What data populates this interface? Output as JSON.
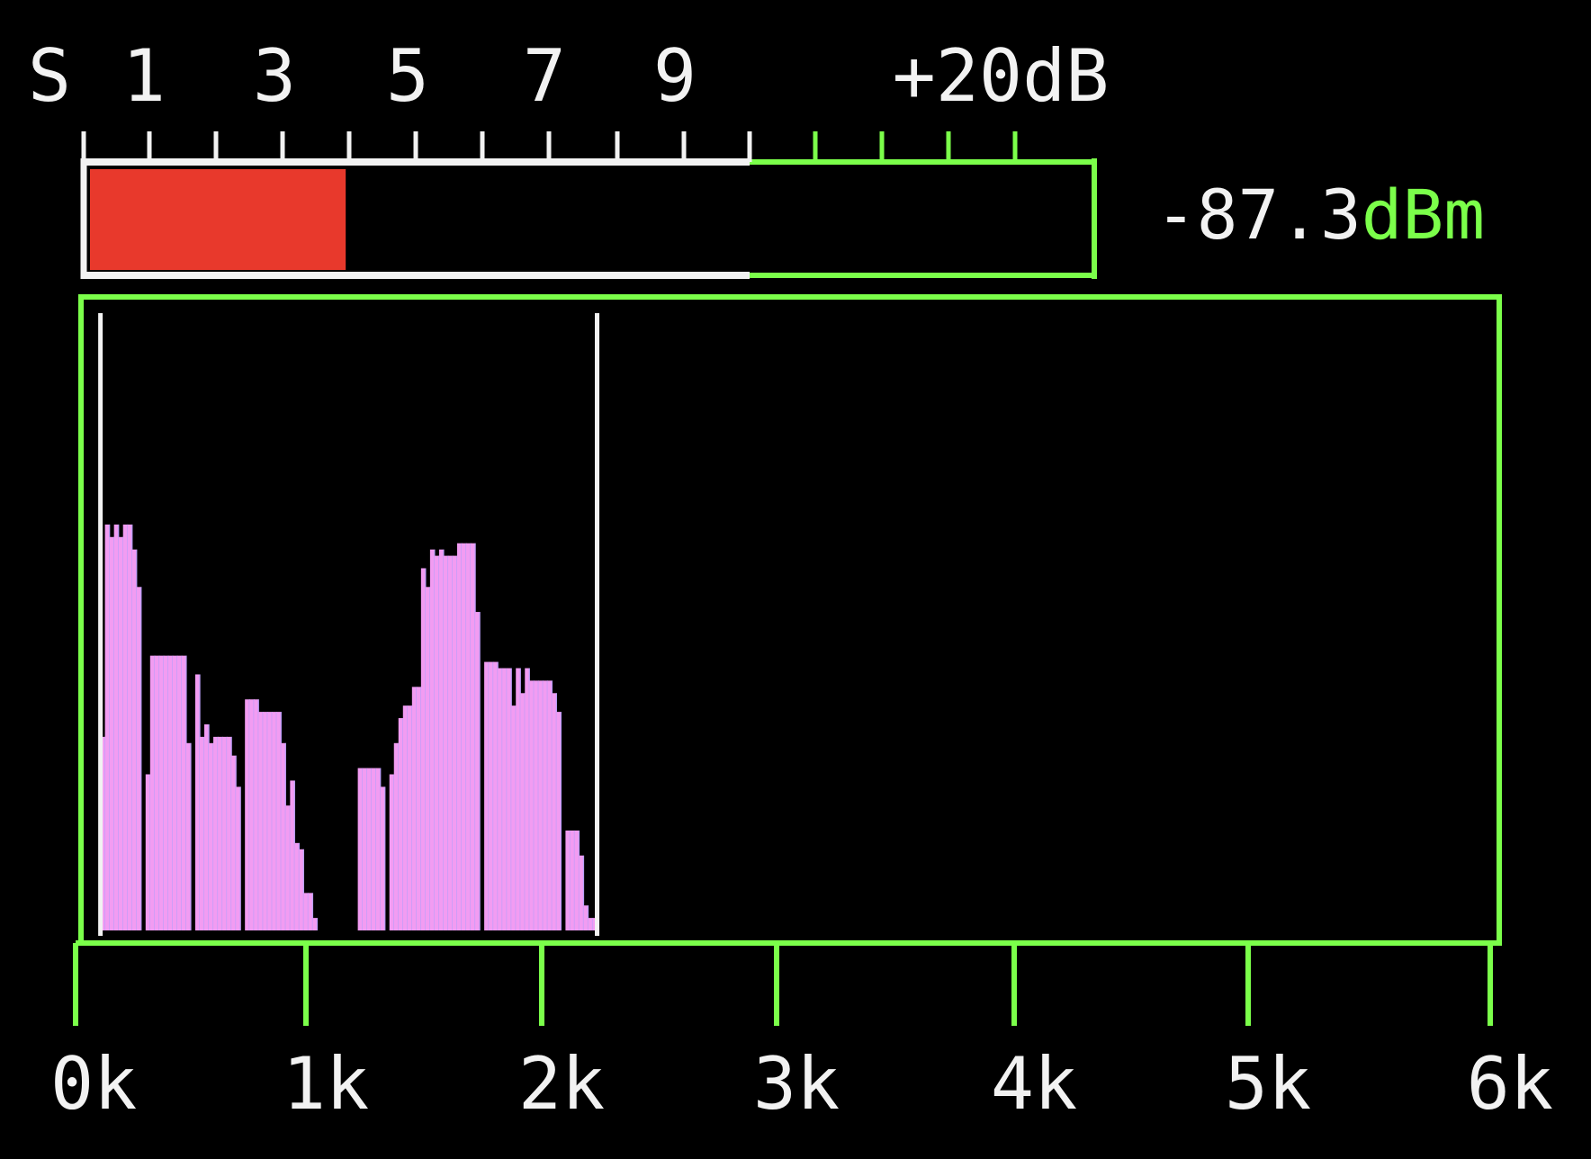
{
  "colors": {
    "background": "#000000",
    "white": "#f2f2f2",
    "green": "#7bff4a",
    "red": "#e8392c",
    "spectrum_fill": "#f29cf2",
    "spectrum_edge": "#8aa0ff"
  },
  "s_meter": {
    "scale_labels": [
      "S",
      "1",
      "3",
      "5",
      "7",
      "9",
      "+20dB"
    ],
    "level_fraction": 0.256,
    "readout_value": "-87.3",
    "readout_unit": "dBm"
  },
  "chart_data": {
    "type": "bar",
    "x_range": [
      0,
      6
    ],
    "x_ticks": [
      0,
      1,
      2,
      3,
      4,
      5,
      6
    ],
    "x_tick_labels": [
      "0k",
      "1k",
      "2k",
      "3k",
      "4k",
      "5k",
      "6k"
    ],
    "passband_markers": [
      0.06,
      2.18
    ],
    "ylim": [
      0,
      100
    ],
    "values": [
      31,
      65,
      63,
      65,
      63,
      65,
      65,
      61,
      55,
      0,
      25,
      44,
      44,
      44,
      44,
      44,
      44,
      44,
      44,
      30,
      0,
      41,
      31,
      33,
      30,
      31,
      31,
      31,
      31,
      28,
      23,
      0,
      37,
      37,
      37,
      35,
      35,
      35,
      35,
      35,
      30,
      20,
      24,
      14,
      13,
      6,
      6,
      2,
      0,
      0,
      0,
      0,
      0,
      0,
      0,
      0,
      0,
      26,
      26,
      26,
      26,
      26,
      23,
      0,
      25,
      30,
      34,
      36,
      36,
      39,
      39,
      58,
      55,
      61,
      60,
      61,
      60,
      60,
      60,
      62,
      62,
      62,
      62,
      51,
      0,
      43,
      43,
      43,
      42,
      42,
      42,
      36,
      42,
      38,
      42,
      40,
      40,
      40,
      40,
      40,
      38,
      35,
      0,
      16,
      16,
      16,
      12,
      4,
      2,
      2
    ]
  }
}
